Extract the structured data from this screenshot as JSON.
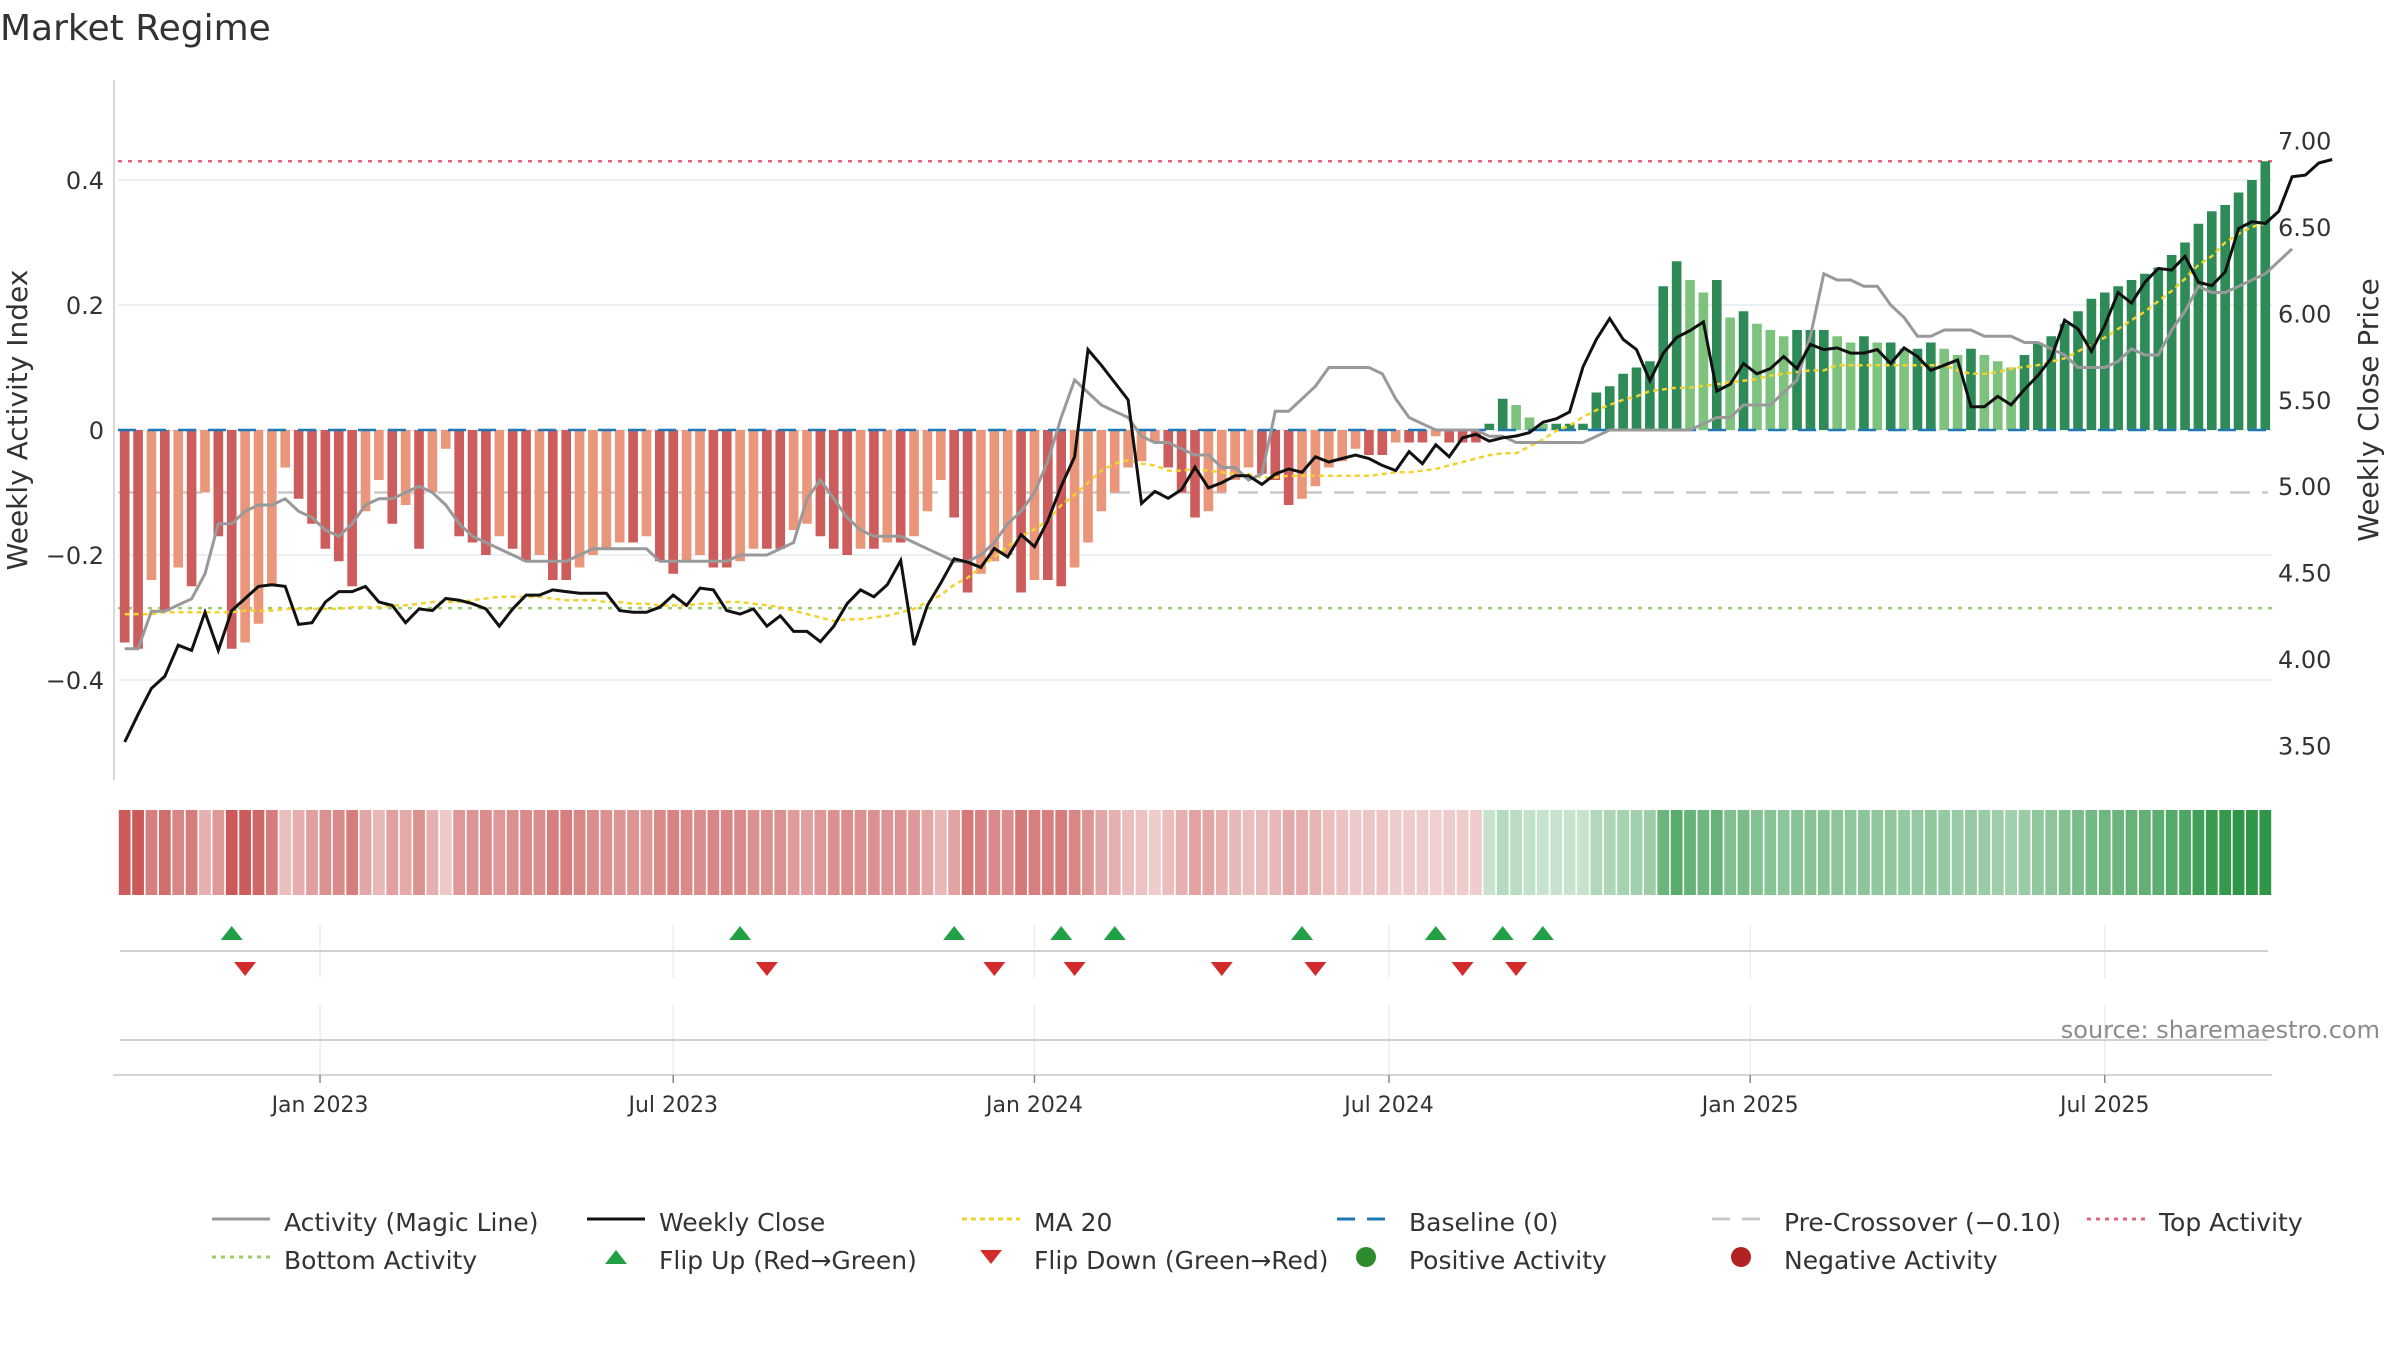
{
  "title": "Market Regime",
  "source": "source: sharemaestro.com",
  "colors": {
    "green_dark": "#2e8b57",
    "green_light": "#7dc27d",
    "red_dark": "#cd5c5c",
    "red_light": "#e9967a",
    "magic_line": "#999999",
    "close": "#111111",
    "ma20": "#f2d22e",
    "baseline": "#1f77b4",
    "pre_crossover": "#c8c8c8",
    "top_activity": "#e8637a",
    "bottom_activity": "#9acd6a",
    "flip_up": "#22a046",
    "flip_down": "#d22b2b",
    "positive": "#2e8b2e",
    "negative": "#b22222"
  },
  "chart_data": {
    "type": "bar",
    "title": "Market Regime",
    "xlabel": "",
    "ylabel": "Weekly Activity Index",
    "ylabel_right": "Weekly Close Price",
    "ylim": [
      -0.56,
      0.56
    ],
    "ylim_right": [
      3.3,
      7.35
    ],
    "yticks": [
      -0.4,
      -0.2,
      0,
      0.2,
      0.4
    ],
    "yticks_labels": [
      "−0.4",
      "−0.2",
      "0",
      "0.2",
      "0.4"
    ],
    "yticks_right": [
      3.5,
      4.0,
      4.5,
      5.0,
      5.5,
      6.0,
      6.5,
      7.0
    ],
    "yticks_right_labels": [
      "3.50",
      "4.00",
      "4.50",
      "5.00",
      "5.50",
      "6.00",
      "6.50",
      "7.00"
    ],
    "x_tick_labels": [
      "Jan 2023",
      "Jul 2023",
      "Jan 2024",
      "Jul 2024",
      "Jan 2025",
      "Jul 2025"
    ],
    "x_tick_weeks": [
      14.6,
      41,
      68,
      94.5,
      121.5,
      148
    ],
    "weeks": 161,
    "levels": {
      "top_activity": 0.43,
      "bottom_activity": -0.285,
      "pre_crossover": -0.1,
      "baseline": 0
    },
    "activity": [
      -0.34,
      -0.35,
      -0.24,
      -0.29,
      -0.22,
      -0.25,
      -0.1,
      -0.17,
      -0.35,
      -0.34,
      -0.31,
      -0.25,
      -0.06,
      -0.11,
      -0.15,
      -0.19,
      -0.21,
      -0.25,
      -0.13,
      -0.08,
      -0.15,
      -0.12,
      -0.19,
      -0.1,
      -0.03,
      -0.17,
      -0.18,
      -0.2,
      -0.17,
      -0.19,
      -0.21,
      -0.2,
      -0.24,
      -0.24,
      -0.22,
      -0.2,
      -0.19,
      -0.18,
      -0.18,
      -0.17,
      -0.21,
      -0.23,
      -0.21,
      -0.2,
      -0.22,
      -0.22,
      -0.21,
      -0.19,
      -0.19,
      -0.19,
      -0.16,
      -0.15,
      -0.17,
      -0.19,
      -0.2,
      -0.19,
      -0.19,
      -0.18,
      -0.18,
      -0.17,
      -0.13,
      -0.08,
      -0.14,
      -0.26,
      -0.23,
      -0.21,
      -0.2,
      -0.26,
      -0.24,
      -0.24,
      -0.25,
      -0.22,
      -0.18,
      -0.13,
      -0.1,
      -0.06,
      -0.05,
      -0.02,
      -0.06,
      -0.1,
      -0.14,
      -0.13,
      -0.1,
      -0.08,
      -0.06,
      -0.07,
      -0.08,
      -0.12,
      -0.11,
      -0.09,
      -0.06,
      -0.05,
      -0.03,
      -0.04,
      -0.04,
      -0.02,
      -0.02,
      -0.02,
      -0.01,
      -0.02,
      -0.02,
      -0.02,
      0.01,
      0.05,
      0.04,
      0.02,
      0.01,
      0.01,
      0.01,
      0.01,
      0.06,
      0.07,
      0.09,
      0.1,
      0.11,
      0.23,
      0.27,
      0.24,
      0.22,
      0.24,
      0.18,
      0.19,
      0.17,
      0.16,
      0.15,
      0.16,
      0.16,
      0.16,
      0.15,
      0.14,
      0.15,
      0.14,
      0.14,
      0.13,
      0.13,
      0.14,
      0.13,
      0.12,
      0.13,
      0.12,
      0.11,
      0.1,
      0.12,
      0.14,
      0.15,
      0.17,
      0.19,
      0.21,
      0.22,
      0.23,
      0.24,
      0.25,
      0.26,
      0.28,
      0.3,
      0.33,
      0.35,
      0.36,
      0.38,
      0.4,
      0.43
    ],
    "magic_line": [
      -0.35,
      -0.35,
      -0.29,
      -0.29,
      -0.28,
      -0.27,
      -0.23,
      -0.15,
      -0.15,
      -0.13,
      -0.12,
      -0.12,
      -0.11,
      -0.13,
      -0.14,
      -0.16,
      -0.17,
      -0.15,
      -0.12,
      -0.11,
      -0.11,
      -0.1,
      -0.09,
      -0.1,
      -0.12,
      -0.15,
      -0.17,
      -0.18,
      -0.19,
      -0.2,
      -0.21,
      -0.21,
      -0.21,
      -0.21,
      -0.2,
      -0.19,
      -0.19,
      -0.19,
      -0.19,
      -0.19,
      -0.21,
      -0.21,
      -0.21,
      -0.21,
      -0.21,
      -0.21,
      -0.2,
      -0.2,
      -0.2,
      -0.19,
      -0.18,
      -0.11,
      -0.08,
      -0.11,
      -0.14,
      -0.16,
      -0.17,
      -0.17,
      -0.17,
      -0.18,
      -0.19,
      -0.2,
      -0.21,
      -0.21,
      -0.2,
      -0.18,
      -0.15,
      -0.13,
      -0.1,
      -0.05,
      0.02,
      0.08,
      0.06,
      0.04,
      0.03,
      0.02,
      -0.01,
      -0.02,
      -0.02,
      -0.03,
      -0.04,
      -0.04,
      -0.06,
      -0.06,
      -0.08,
      -0.07,
      0.03,
      0.03,
      0.05,
      0.07,
      0.1,
      0.1,
      0.1,
      0.1,
      0.09,
      0.05,
      0.02,
      0.01,
      0.0,
      0.0,
      0.0,
      0.0,
      -0.01,
      -0.01,
      -0.02,
      -0.02,
      -0.02,
      -0.02,
      -0.02,
      -0.02,
      -0.01,
      0.0,
      0.0,
      0.0,
      0.0,
      0.0,
      0.0,
      0.0,
      0.01,
      0.02,
      0.02,
      0.04,
      0.04,
      0.04,
      0.06,
      0.08,
      0.15,
      0.25,
      0.24,
      0.24,
      0.23,
      0.23,
      0.2,
      0.18,
      0.15,
      0.15,
      0.16,
      0.16,
      0.16,
      0.15,
      0.15,
      0.15,
      0.14,
      0.14,
      0.13,
      0.12,
      0.1,
      0.1,
      0.1,
      0.11,
      0.13,
      0.12,
      0.12,
      0.16,
      0.19,
      0.23,
      0.22,
      0.22,
      0.23,
      0.24,
      0.25,
      0.27,
      0.29
    ],
    "weekly_close": [
      3.52,
      3.68,
      3.83,
      3.9,
      4.08,
      4.05,
      4.27,
      4.05,
      4.28,
      4.35,
      4.42,
      4.43,
      4.42,
      4.2,
      4.21,
      4.33,
      4.39,
      4.39,
      4.42,
      4.33,
      4.31,
      4.21,
      4.29,
      4.28,
      4.35,
      4.34,
      4.32,
      4.29,
      4.19,
      4.29,
      4.37,
      4.37,
      4.4,
      4.39,
      4.38,
      4.38,
      4.38,
      4.28,
      4.27,
      4.27,
      4.3,
      4.37,
      4.31,
      4.41,
      4.4,
      4.28,
      4.26,
      4.29,
      4.19,
      4.25,
      4.16,
      4.16,
      4.1,
      4.19,
      4.32,
      4.4,
      4.36,
      4.43,
      4.57,
      4.08,
      4.31,
      4.44,
      4.58,
      4.56,
      4.53,
      4.64,
      4.59,
      4.72,
      4.65,
      4.8,
      5.0,
      5.17,
      5.79,
      5.7,
      5.6,
      5.5,
      4.9,
      4.97,
      4.93,
      4.98,
      5.11,
      4.99,
      5.02,
      5.06,
      5.06,
      5.01,
      5.07,
      5.1,
      5.08,
      5.17,
      5.14,
      5.16,
      5.18,
      5.16,
      5.12,
      5.09,
      5.2,
      5.13,
      5.24,
      5.17,
      5.28,
      5.3,
      5.26,
      5.28,
      5.29,
      5.31,
      5.37,
      5.39,
      5.43,
      5.69,
      5.85,
      5.97,
      5.85,
      5.79,
      5.61,
      5.77,
      5.86,
      5.9,
      5.95,
      5.55,
      5.59,
      5.71,
      5.65,
      5.68,
      5.75,
      5.68,
      5.82,
      5.79,
      5.8,
      5.77,
      5.77,
      5.79,
      5.71,
      5.8,
      5.75,
      5.67,
      5.7,
      5.73,
      5.46,
      5.46,
      5.52,
      5.47,
      5.56,
      5.64,
      5.74,
      5.96,
      5.91,
      5.78,
      5.93,
      6.12,
      6.06,
      6.18,
      6.26,
      6.25,
      6.33,
      6.18,
      6.16,
      6.24,
      6.49,
      6.53,
      6.52,
      6.59,
      6.79,
      6.8,
      6.87,
      6.89
    ],
    "ma20": [
      4.26,
      4.26,
      4.26,
      4.27,
      4.27,
      4.27,
      4.27,
      4.27,
      4.27,
      4.28,
      4.28,
      4.28,
      4.29,
      4.29,
      4.29,
      4.29,
      4.29,
      4.3,
      4.3,
      4.3,
      4.31,
      4.31,
      4.32,
      4.33,
      4.33,
      4.33,
      4.34,
      4.35,
      4.36,
      4.36,
      4.36,
      4.36,
      4.35,
      4.34,
      4.34,
      4.34,
      4.33,
      4.33,
      4.32,
      4.32,
      4.31,
      4.31,
      4.31,
      4.32,
      4.32,
      4.33,
      4.33,
      4.32,
      4.31,
      4.3,
      4.28,
      4.26,
      4.24,
      4.22,
      4.23,
      4.23,
      4.24,
      4.25,
      4.27,
      4.29,
      4.33,
      4.37,
      4.43,
      4.47,
      4.53,
      4.59,
      4.65,
      4.71,
      4.75,
      4.8,
      4.89,
      4.95,
      5.02,
      5.09,
      5.13,
      5.15,
      5.13,
      5.12,
      5.09,
      5.09,
      5.1,
      5.09,
      5.08,
      5.07,
      5.07,
      5.05,
      5.05,
      5.06,
      5.06,
      5.06,
      5.06,
      5.06,
      5.06,
      5.06,
      5.07,
      5.08,
      5.08,
      5.09,
      5.1,
      5.12,
      5.14,
      5.16,
      5.18,
      5.19,
      5.19,
      5.23,
      5.27,
      5.32,
      5.35,
      5.4,
      5.44,
      5.47,
      5.5,
      5.52,
      5.55,
      5.56,
      5.57,
      5.57,
      5.58,
      5.59,
      5.6,
      5.61,
      5.62,
      5.64,
      5.65,
      5.66,
      5.67,
      5.67,
      5.7,
      5.7,
      5.7,
      5.7,
      5.7,
      5.7,
      5.7,
      5.7,
      5.7,
      5.67,
      5.65,
      5.65,
      5.66,
      5.68,
      5.69,
      5.7,
      5.72,
      5.74,
      5.78,
      5.82,
      5.86,
      5.91,
      5.96,
      6.01,
      6.07,
      6.13,
      6.2,
      6.28,
      6.33,
      6.41,
      6.46,
      6.5,
      6.52
    ],
    "regime_strip": "value-shaded copy of the activity bars (red = negative, green = positive)",
    "flips_up_weeks": [
      8,
      46,
      62,
      70,
      74,
      88,
      98,
      103,
      106
    ],
    "flips_down_weeks": [
      9,
      48,
      65,
      71,
      82,
      89,
      100,
      104
    ]
  },
  "legend": {
    "items": [
      {
        "key": "magic",
        "label": "Activity (Magic Line)"
      },
      {
        "key": "close",
        "label": "Weekly Close"
      },
      {
        "key": "ma20",
        "label": "MA 20"
      },
      {
        "key": "baseline",
        "label": "Baseline (0)"
      },
      {
        "key": "precross",
        "label": "Pre-Crossover (−0.10)"
      },
      {
        "key": "top",
        "label": "Top Activity"
      },
      {
        "key": "bottom",
        "label": "Bottom Activity"
      },
      {
        "key": "flipup",
        "label": "Flip Up (Red→Green)"
      },
      {
        "key": "flipdown",
        "label": "Flip Down (Green→Red)"
      },
      {
        "key": "positive",
        "label": "Positive Activity"
      },
      {
        "key": "negative",
        "label": "Negative Activity"
      }
    ]
  }
}
